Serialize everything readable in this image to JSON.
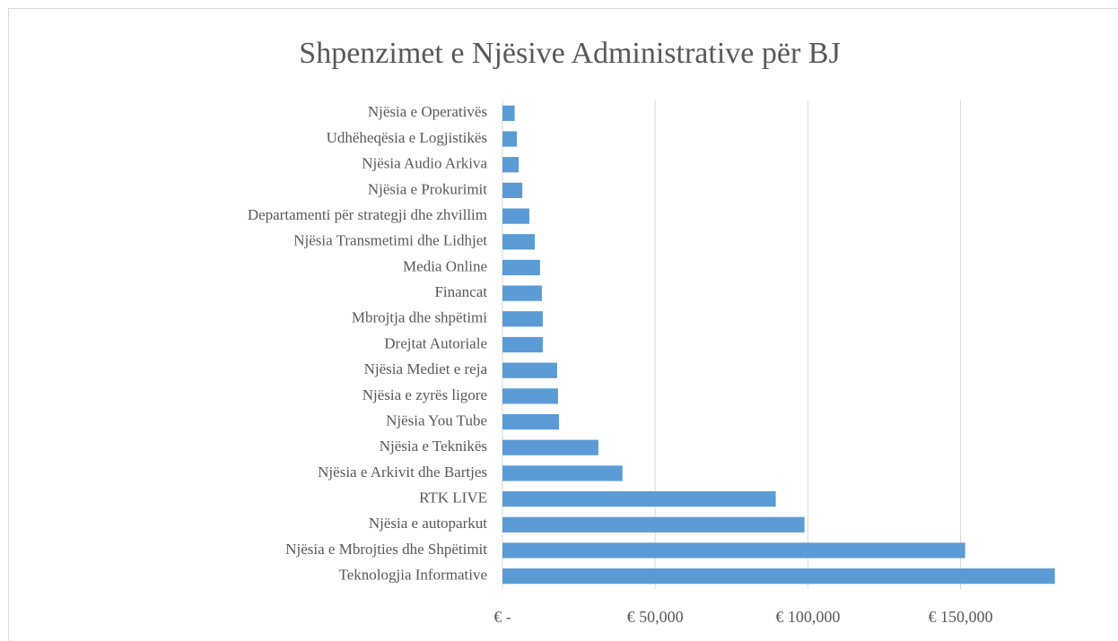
{
  "chart_data": {
    "type": "bar",
    "orientation": "horizontal",
    "title": "Shpenzimet e Njësive Administrative për BJ",
    "categories": [
      "Njësia e Operativës",
      "Udhëheqësia e Logjistikës",
      "Njësia Audio Arkiva",
      "Njësia e Prokurimit",
      "Departamenti për strategji dhe zhvillim",
      "Njësia Transmetimi dhe Lidhjet",
      "Media Online",
      "Financat",
      "Mbrojtja dhe shpëtimi",
      "Drejtat Autoriale",
      "Njësia Mediet e reja",
      "Njësia e zyrës ligore",
      "Njësia You Tube",
      "Njësia e Teknikës",
      "Njësia e Arkivit dhe Bartjes",
      "RTK LIVE",
      "Njësia e autoparkut",
      "Njësia e Mbrojties dhe Shpëtimit",
      "Teknologjia Informative"
    ],
    "values": [
      4000,
      4700,
      5300,
      6500,
      8800,
      10600,
      12300,
      12900,
      13200,
      13200,
      17900,
      18200,
      18500,
      31400,
      39300,
      89500,
      98900,
      151500,
      180900
    ],
    "color": "#5b9bd5",
    "xlim": [
      0,
      181000
    ],
    "xticks": [
      {
        "value": 0,
        "label": "€ -"
      },
      {
        "value": 50000,
        "label": "€ 50,000"
      },
      {
        "value": 100000,
        "label": "€ 100,000"
      },
      {
        "value": 150000,
        "label": "€ 150,000"
      }
    ],
    "grid": true
  }
}
